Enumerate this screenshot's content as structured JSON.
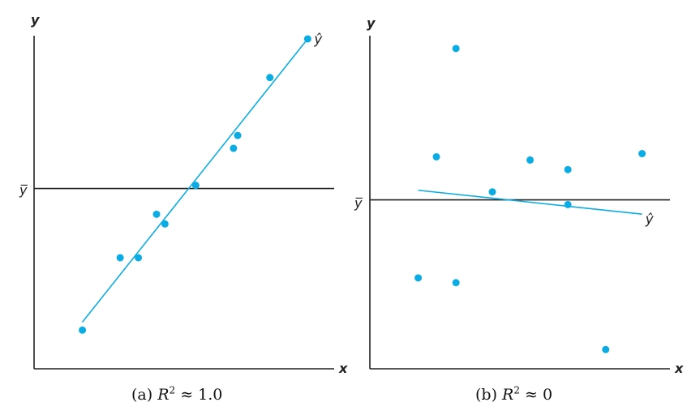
{
  "chart_data": [
    {
      "type": "scatter",
      "panel_label": "(a)",
      "caption_prefix": "(a) ",
      "caption_r": "R",
      "caption_exp": "2",
      "caption_rest": " ≈ 1.0",
      "xlabel": "x",
      "ylabel": "y",
      "mean_label": "y̅",
      "fit_label": "ŷ",
      "xlim": [
        0,
        10
      ],
      "ylim": [
        0,
        10
      ],
      "mean_y": 5.35,
      "points": [
        {
          "x": 1.35,
          "y": 0.95
        },
        {
          "x": 2.7,
          "y": 3.2
        },
        {
          "x": 3.35,
          "y": 3.2
        },
        {
          "x": 4.0,
          "y": 4.55
        },
        {
          "x": 4.3,
          "y": 4.25
        },
        {
          "x": 5.4,
          "y": 5.45
        },
        {
          "x": 6.75,
          "y": 6.6
        },
        {
          "x": 6.9,
          "y": 7.0
        },
        {
          "x": 8.05,
          "y": 8.8
        },
        {
          "x": 9.4,
          "y": 10.0
        }
      ],
      "fit_line": [
        {
          "x": 1.35,
          "y": 1.2
        },
        {
          "x": 9.4,
          "y": 10.0
        }
      ],
      "color": "#0aace3"
    },
    {
      "type": "scatter",
      "panel_label": "(b)",
      "caption_prefix": "(b) ",
      "caption_r": "R",
      "caption_exp": "2",
      "caption_rest": " ≈ 0",
      "xlabel": "x",
      "ylabel": "y",
      "mean_label": "y̅",
      "fit_label": "ŷ",
      "xlim": [
        0,
        10
      ],
      "ylim": [
        0,
        10
      ],
      "mean_y": 5.05,
      "points": [
        {
          "x": 1.35,
          "y": 2.6
        },
        {
          "x": 2.0,
          "y": 6.4
        },
        {
          "x": 2.7,
          "y": 9.8
        },
        {
          "x": 2.7,
          "y": 2.45
        },
        {
          "x": 4.0,
          "y": 5.3
        },
        {
          "x": 5.35,
          "y": 6.3
        },
        {
          "x": 6.7,
          "y": 6.0
        },
        {
          "x": 6.7,
          "y": 4.9
        },
        {
          "x": 8.05,
          "y": 0.35
        },
        {
          "x": 9.35,
          "y": 6.5
        }
      ],
      "fit_line": [
        {
          "x": 1.35,
          "y": 5.35
        },
        {
          "x": 9.35,
          "y": 4.6
        }
      ],
      "color": "#0aace3"
    }
  ]
}
